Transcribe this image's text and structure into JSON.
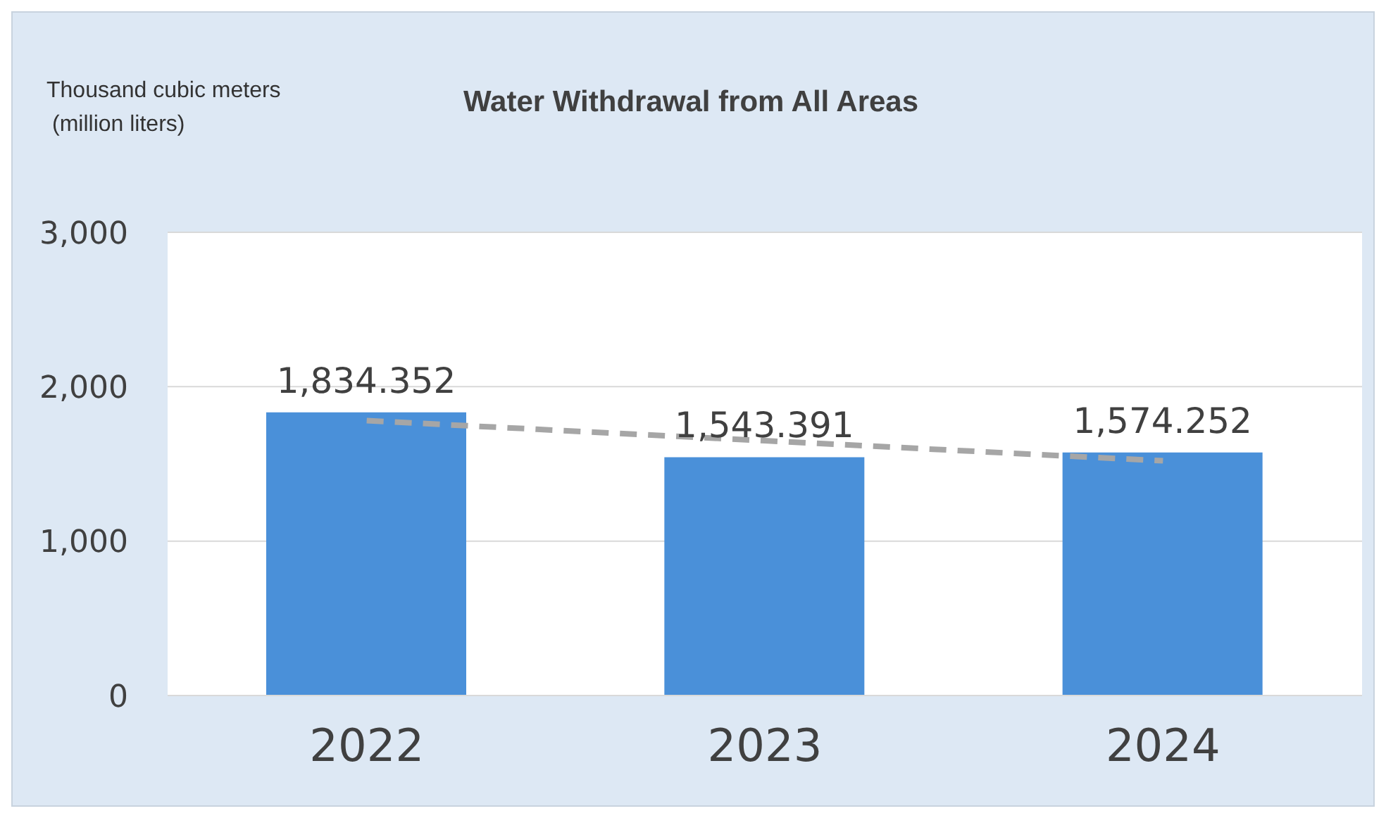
{
  "chart_data": {
    "type": "bar",
    "title": "Water Withdrawal from All Areas",
    "ylabel": "Thousand cubic meters\n(million liters)",
    "categories": [
      "2022",
      "2023",
      "2024"
    ],
    "series": [
      {
        "color": "#4a90d9",
        "values": [
          1834.352,
          1543.391,
          1574.252
        ],
        "value_labels": [
          "1,834.352",
          "1,543.391",
          "1,574.252"
        ]
      },
      {
        "type": "line",
        "color": "#a6a6a6",
        "line_style": "dashed",
        "marker": "none",
        "values": [
          1780,
          1650,
          1520
        ]
      }
    ],
    "ylim": [
      0,
      3000
    ],
    "yticks": [
      {
        "value": 0,
        "label": "0"
      },
      {
        "value": 1000,
        "label": "1,000"
      },
      {
        "value": 2000,
        "label": "2,000"
      },
      {
        "value": 3000,
        "label": "3,000"
      }
    ],
    "grid": "y",
    "legend": false
  }
}
